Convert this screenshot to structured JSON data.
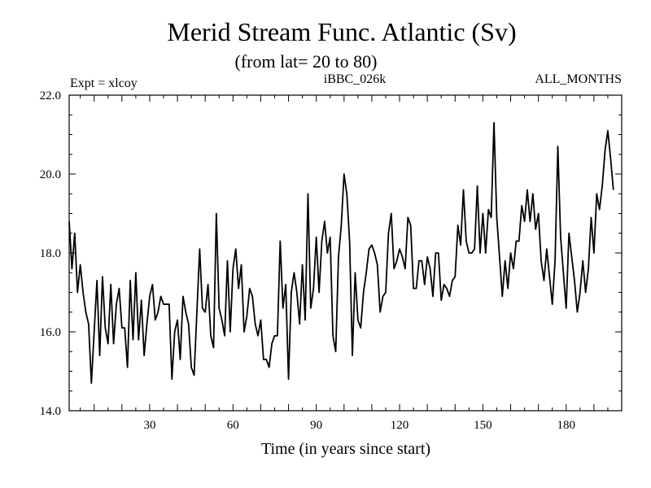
{
  "chart_data": {
    "type": "line",
    "title": "Merid Stream Func. Atlantic (Sv)",
    "subtitle": "(from lat= 20 to 80)",
    "header_left": "Expt = xlcoy",
    "header_center": "iBBC_026k",
    "header_right": "ALL_MONTHS",
    "xlabel": "Time (in years since start)",
    "ylabel": "",
    "xlim": [
      1,
      200
    ],
    "ylim": [
      14.0,
      22.0
    ],
    "xticks": [
      30,
      60,
      90,
      120,
      150,
      180
    ],
    "yticks": [
      14.0,
      16.0,
      18.0,
      20.0,
      22.0
    ],
    "ytick_labels": [
      "14.0",
      "16.0",
      "18.0",
      "20.0",
      "22.0"
    ],
    "series": [
      {
        "name": "Merid Stream Func.",
        "x_start": 1,
        "x_step": 1,
        "values": [
          18.8,
          17.6,
          18.5,
          17.0,
          17.7,
          17.0,
          16.5,
          16.2,
          14.7,
          16.0,
          17.3,
          15.4,
          17.4,
          16.1,
          15.7,
          17.2,
          15.7,
          16.7,
          17.1,
          16.1,
          16.1,
          15.1,
          17.3,
          15.8,
          17.5,
          15.8,
          16.8,
          15.4,
          16.2,
          16.9,
          17.2,
          16.3,
          16.5,
          16.9,
          16.7,
          16.7,
          16.7,
          14.8,
          16.0,
          16.3,
          15.3,
          16.9,
          16.5,
          16.2,
          15.1,
          14.9,
          16.5,
          18.1,
          16.6,
          16.5,
          17.2,
          15.9,
          15.6,
          19.0,
          16.6,
          16.3,
          15.9,
          17.8,
          16.0,
          17.6,
          18.1,
          17.1,
          17.7,
          16.0,
          16.4,
          17.1,
          16.9,
          16.2,
          15.9,
          16.3,
          15.3,
          15.3,
          15.1,
          15.7,
          15.9,
          15.9,
          18.3,
          16.6,
          17.2,
          14.8,
          17.0,
          17.5,
          17.0,
          16.2,
          17.7,
          16.3,
          19.5,
          16.6,
          17.1,
          18.4,
          17.0,
          18.3,
          18.8,
          18.0,
          18.4,
          15.9,
          15.5,
          17.9,
          18.7,
          20.0,
          19.5,
          18.3,
          15.4,
          17.5,
          16.3,
          16.1,
          17.0,
          17.5,
          18.1,
          18.2,
          18.0,
          17.7,
          16.5,
          16.9,
          17.0,
          18.5,
          19.0,
          17.6,
          17.8,
          18.1,
          17.9,
          17.6,
          18.9,
          18.7,
          17.1,
          17.1,
          17.8,
          17.8,
          17.2,
          17.9,
          17.6,
          16.9,
          18.0,
          18.0,
          16.8,
          17.2,
          17.1,
          16.9,
          17.3,
          17.4,
          18.7,
          18.2,
          19.6,
          18.3,
          18.0,
          18.0,
          18.1,
          19.7,
          18.0,
          19.0,
          18.0,
          19.1,
          18.9,
          21.3,
          18.9,
          17.9,
          16.9,
          17.8,
          17.1,
          18.0,
          17.6,
          18.3,
          18.3,
          19.2,
          18.8,
          19.6,
          18.8,
          19.5,
          18.6,
          19.0,
          17.8,
          17.3,
          18.1,
          17.4,
          16.7,
          17.8,
          20.7,
          18.4,
          17.5,
          16.6,
          18.5,
          17.9,
          17.3,
          16.5,
          17.0,
          17.8,
          17.0,
          17.6,
          18.9,
          18.0,
          19.5,
          19.1,
          19.7,
          20.6,
          21.1,
          20.4,
          19.6
        ]
      }
    ]
  }
}
